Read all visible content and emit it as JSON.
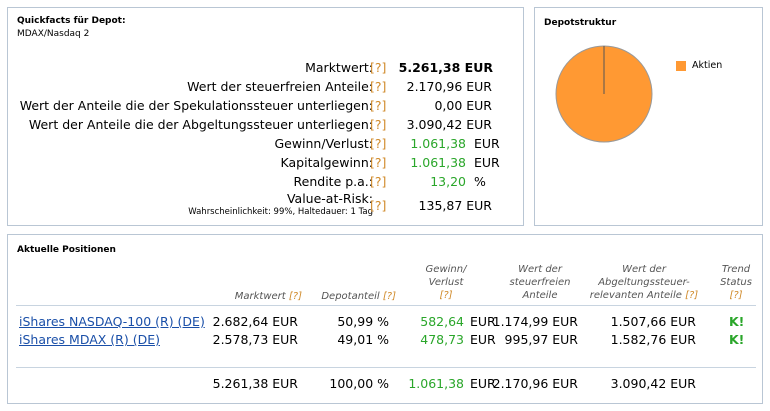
{
  "quickfacts": {
    "title": "Quickfacts für Depot:",
    "subtitle": "MDAX/Nasdaq 2",
    "help": "[?]",
    "rows": [
      {
        "label": "Marktwert:",
        "value": "5.261,38 EUR"
      },
      {
        "label": "Wert der steuerfreien Anteile:",
        "value": "2.170,96 EUR"
      },
      {
        "label": "Wert der Anteile die der Spekulationssteuer unterliegen:",
        "value": "0,00 EUR"
      },
      {
        "label": "Wert der Anteile die der Abgeltungssteuer unterliegen:",
        "value": "3.090,42 EUR"
      },
      {
        "label": "Gewinn/Verlust:",
        "number": "1.061,38",
        "unit": "EUR"
      },
      {
        "label": "Kapitalgewinn:",
        "number": "1.061,38",
        "unit": "EUR"
      },
      {
        "label": "Rendite p.a.:",
        "number": "13,20",
        "unit": "%"
      },
      {
        "label": "Value-at-Risk:",
        "note": "Wahrscheinlichkeit: 99%, Haltedauer: 1 Tag",
        "value": "135,87 EUR"
      }
    ]
  },
  "depotstruktur": {
    "title": "Depotstruktur",
    "legend": [
      {
        "label": "Aktien",
        "color": "#ff9933"
      }
    ],
    "slices": [
      {
        "label": "Aktien",
        "share": 100
      }
    ]
  },
  "positionen": {
    "title": "Aktuelle Positionen",
    "help": "[?]",
    "headers": {
      "marktwert": "Marktwert",
      "depotanteil": "Depotanteil",
      "gewinn_l1": "Gewinn/",
      "gewinn_l2": "Verlust",
      "steuerfrei_l1": "Wert der",
      "steuerfrei_l2": "steuerfreien",
      "steuerfrei_l3": "Anteile",
      "abgeltung_l1": "Wert der",
      "abgeltung_l2": "Abgeltungssteuer-",
      "abgeltung_l3": "relevanten Anteile",
      "trend_l1": "Trend",
      "trend_l2": "Status"
    },
    "rows": [
      {
        "name": "iShares NASDAQ-100 (R) (DE)",
        "marktwert": "2.682,64 EUR",
        "anteil": "50,99 %",
        "gewinn": "582,64",
        "gewinn_unit": "EUR",
        "steuerfrei": "1.174,99 EUR",
        "abgeltung": "1.507,66 EUR",
        "trend": "K!"
      },
      {
        "name": "iShares MDAX (R) (DE)",
        "marktwert": "2.578,73 EUR",
        "anteil": "49,01 %",
        "gewinn": "478,73",
        "gewinn_unit": "EUR",
        "steuerfrei": "995,97 EUR",
        "abgeltung": "1.582,76 EUR",
        "trend": "K!"
      }
    ],
    "total": {
      "marktwert": "5.261,38 EUR",
      "anteil": "100,00 %",
      "gewinn": "1.061,38",
      "gewinn_unit": "EUR",
      "steuerfrei": "2.170,96 EUR",
      "abgeltung": "3.090,42 EUR"
    }
  }
}
